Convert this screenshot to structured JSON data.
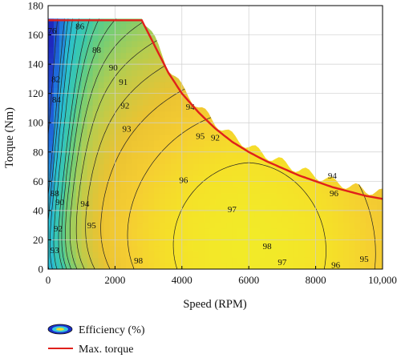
{
  "chart_data": {
    "type": "contour",
    "xlabel": "Speed (RPM)",
    "ylabel": "Torque (Nm)",
    "xlim": [
      0,
      10000
    ],
    "ylim": [
      0,
      180
    ],
    "xticks": [
      0,
      2000,
      4000,
      6000,
      8000,
      10000
    ],
    "xtick_labels": [
      "0",
      "2000",
      "4000",
      "6000",
      "8000",
      "10,000"
    ],
    "yticks": [
      0,
      20,
      40,
      60,
      80,
      100,
      120,
      140,
      160,
      180
    ],
    "grid": true,
    "legend": {
      "placement": "bottom",
      "entries": [
        {
          "label": "Efficiency (%)",
          "kind": "contour-swatch"
        },
        {
          "label": "Max. torque",
          "kind": "line",
          "color": "#e0201b"
        }
      ]
    },
    "max_torque_curve": {
      "name": "Max. torque",
      "color": "#e0201b",
      "x": [
        0,
        2800,
        3200,
        3600,
        4000,
        4500,
        5000,
        5500,
        6000,
        6500,
        7000,
        7500,
        8000,
        8500,
        9000,
        9500,
        10000
      ],
      "y": [
        170,
        170,
        152,
        134,
        120,
        107,
        96,
        87,
        80,
        74,
        69,
        64,
        60,
        56,
        53,
        50,
        48
      ]
    },
    "efficiency_contours": {
      "levels": [
        76,
        82,
        84,
        86,
        88,
        90,
        91,
        92,
        93,
        94,
        95,
        96,
        97,
        98
      ],
      "labels": [
        {
          "text": "76",
          "x": 120,
          "y": 163
        },
        {
          "text": "82",
          "x": 230,
          "y": 130
        },
        {
          "text": "84",
          "x": 250,
          "y": 116
        },
        {
          "text": "86",
          "x": 950,
          "y": 166
        },
        {
          "text": "88",
          "x": 1450,
          "y": 150
        },
        {
          "text": "90",
          "x": 1950,
          "y": 138
        },
        {
          "text": "91",
          "x": 2250,
          "y": 128
        },
        {
          "text": "92",
          "x": 2300,
          "y": 112
        },
        {
          "text": "93",
          "x": 2350,
          "y": 96
        },
        {
          "text": "88",
          "x": 200,
          "y": 52
        },
        {
          "text": "90",
          "x": 350,
          "y": 46
        },
        {
          "text": "92",
          "x": 300,
          "y": 28
        },
        {
          "text": "93",
          "x": 200,
          "y": 13
        },
        {
          "text": "94",
          "x": 1100,
          "y": 45
        },
        {
          "text": "95",
          "x": 4550,
          "y": 91
        },
        {
          "text": "95",
          "x": 1300,
          "y": 30
        },
        {
          "text": "96",
          "x": 4050,
          "y": 61
        },
        {
          "text": "97",
          "x": 5500,
          "y": 41
        },
        {
          "text": "98",
          "x": 6550,
          "y": 16
        },
        {
          "text": "98",
          "x": 2700,
          "y": 6
        },
        {
          "text": "94",
          "x": 4250,
          "y": 111
        },
        {
          "text": "92",
          "x": 5000,
          "y": 90
        },
        {
          "text": "94",
          "x": 8500,
          "y": 64
        },
        {
          "text": "96",
          "x": 8550,
          "y": 52
        },
        {
          "text": "97",
          "x": 7000,
          "y": 5
        },
        {
          "text": "96",
          "x": 8600,
          "y": 3
        },
        {
          "text": "95",
          "x": 9450,
          "y": 7
        }
      ]
    }
  },
  "legend": {
    "efficiency_label": "Efficiency (%)",
    "max_torque_label": "Max. torque"
  }
}
